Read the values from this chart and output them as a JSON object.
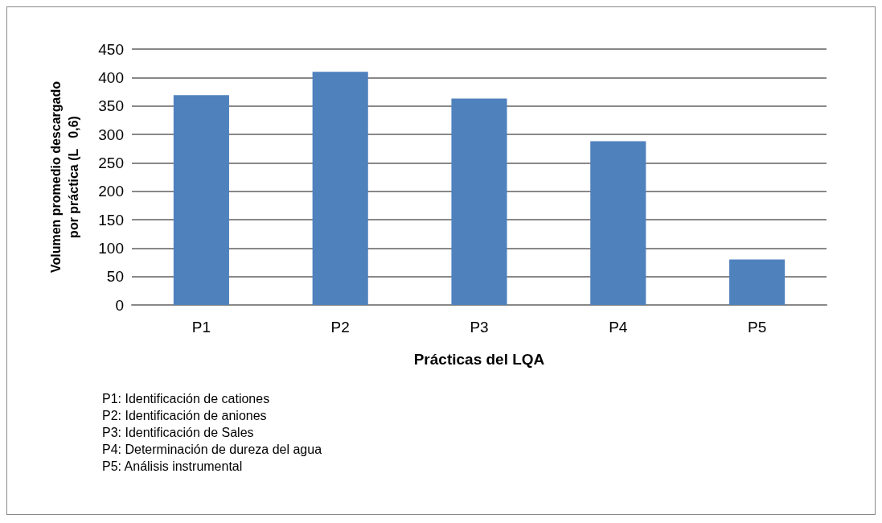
{
  "chart_data": {
    "type": "bar",
    "xlabel": "Prácticas del LQA",
    "ylabel": "Volumen promedio descargado\npor práctica (L   0,6)",
    "categories": [
      "P1",
      "P2",
      "P3",
      "P4",
      "P5"
    ],
    "values": [
      369,
      410,
      363,
      288,
      80
    ],
    "color": "#4f81bd",
    "ylim": [
      0,
      450
    ],
    "yticks": [
      0,
      50,
      100,
      150,
      200,
      250,
      300,
      350,
      400,
      450
    ],
    "grid": "y",
    "annotations": [
      "P1: Identificación de cationes",
      "P2: Identificación de aniones",
      "P3: Identificación de Sales",
      "P4: Determinación de dureza del agua",
      "P5: Análisis instrumental"
    ]
  }
}
